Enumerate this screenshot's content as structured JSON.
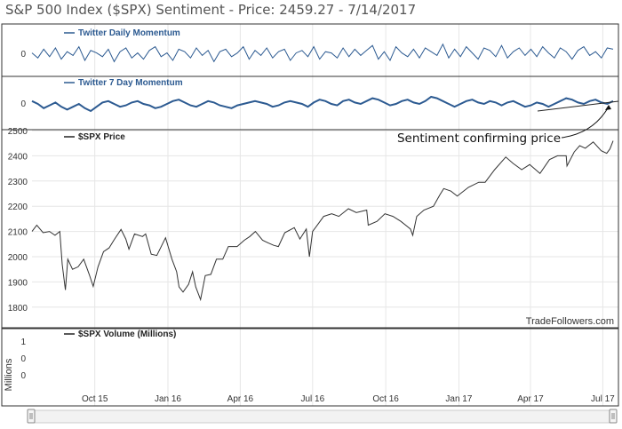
{
  "title": "S&P 500 Index ($SPX) Sentiment - Price: 2459.27 - 7/14/2017",
  "watermark": "TradeFollowers.com",
  "annotation": "Sentiment confirming price",
  "colors": {
    "momentum": "#2c5a91",
    "price": "#333333",
    "grid": "#e6e6e6",
    "panel_border": "#333333",
    "legend_blue": "#2c5a91",
    "legend_dark": "#222222"
  },
  "chart_data": [
    {
      "panel": "twitter-daily-momentum",
      "type": "line",
      "legend": "Twitter Daily Momentum",
      "ytick_labels": [
        "0"
      ],
      "x_start": "2015-07-14",
      "x_end": "2017-07-14",
      "series": [
        {
          "name": "Twitter Daily Momentum",
          "values": [
            0.1,
            -0.3,
            0.4,
            -0.2,
            0.5,
            -0.4,
            0.2,
            -0.1,
            0.6,
            -0.5,
            0.3,
            0.1,
            -0.2,
            0.4,
            -0.6,
            0.2,
            0.5,
            -0.3,
            0.1,
            -0.4,
            0.3,
            0.6,
            -0.2,
            0.1,
            -0.5,
            0.4,
            0.2,
            -0.3,
            0.5,
            -0.1,
            0.3,
            -0.6,
            0.2,
            0.4,
            -0.2,
            0.1,
            0.6,
            -0.4,
            0.3,
            -0.1,
            0.5,
            -0.3,
            0.2,
            0.4,
            -0.5,
            0.1,
            0.3,
            -0.2,
            0.6,
            -0.4,
            0.2,
            0.1,
            -0.3,
            0.5,
            -0.2,
            0.4,
            -0.1,
            0.3,
            0.7,
            -0.4,
            0.2,
            -0.5,
            0.6,
            0.1,
            -0.2,
            0.4,
            -0.3,
            0.5,
            0.2,
            -0.1,
            0.8,
            -0.3,
            0.4,
            -0.2,
            0.6,
            0.1,
            -0.4,
            0.5,
            0.3,
            -0.2,
            0.7,
            -0.3,
            0.2,
            0.5,
            -0.1,
            0.4,
            -0.2,
            0.6,
            0.1,
            -0.3,
            0.5,
            0.2,
            -0.4,
            0.3,
            0.6,
            -0.1,
            0.2,
            -0.3,
            0.5,
            0.4
          ]
        }
      ]
    },
    {
      "panel": "twitter-7-day-momentum",
      "type": "line",
      "legend": "Twitter 7 Day Momentum",
      "ytick_labels": [
        "0"
      ],
      "x_start": "2015-07-14",
      "x_end": "2017-07-14",
      "series": [
        {
          "name": "Twitter 7 Day Momentum",
          "values": [
            0.2,
            0.0,
            -0.3,
            -0.1,
            0.1,
            -0.2,
            -0.4,
            -0.2,
            0.0,
            -0.3,
            -0.5,
            -0.2,
            0.1,
            0.2,
            0.0,
            -0.2,
            -0.1,
            0.1,
            0.2,
            0.0,
            -0.1,
            -0.3,
            -0.2,
            0.0,
            0.2,
            0.3,
            0.1,
            -0.1,
            -0.2,
            0.0,
            0.2,
            0.1,
            -0.1,
            -0.2,
            -0.3,
            -0.1,
            0.0,
            0.1,
            0.2,
            0.1,
            0.0,
            -0.2,
            -0.1,
            0.1,
            0.2,
            0.1,
            0.0,
            -0.2,
            0.1,
            0.3,
            0.2,
            0.0,
            -0.1,
            0.2,
            0.3,
            0.1,
            0.0,
            0.2,
            0.4,
            0.3,
            0.1,
            -0.1,
            0.0,
            0.2,
            0.3,
            0.1,
            0.0,
            0.2,
            0.5,
            0.4,
            0.2,
            0.0,
            -0.2,
            0.0,
            0.2,
            0.3,
            0.1,
            0.0,
            0.2,
            0.1,
            -0.1,
            0.1,
            0.2,
            0.0,
            -0.2,
            -0.1,
            0.1,
            0.0,
            -0.2,
            0.0,
            0.2,
            0.4,
            0.3,
            0.1,
            0.0,
            0.2,
            0.3,
            0.1,
            0.0,
            0.2
          ]
        }
      ]
    },
    {
      "panel": "spx-price",
      "type": "line",
      "legend": "$SPX Price",
      "ylim": [
        1750,
        2500
      ],
      "yticks": [
        1800,
        1900,
        2000,
        2100,
        2200,
        2300,
        2400,
        2500
      ],
      "x_start": "2015-07-14",
      "x_end": "2017-07-14",
      "xticks": [
        {
          "label": "Oct 15",
          "date": "2015-10-01"
        },
        {
          "label": "Jan 16",
          "date": "2016-01-01"
        },
        {
          "label": "Apr 16",
          "date": "2016-04-01"
        },
        {
          "label": "Jul 16",
          "date": "2016-07-01"
        },
        {
          "label": "Oct 16",
          "date": "2016-10-01"
        },
        {
          "label": "Jan 17",
          "date": "2017-01-01"
        },
        {
          "label": "Apr 17",
          "date": "2017-04-01"
        },
        {
          "label": "Jul 17",
          "date": "2017-07-01"
        }
      ],
      "series": [
        {
          "name": "$SPX Price",
          "points": [
            [
              "2015-07-14",
              2100
            ],
            [
              "2015-07-20",
              2125
            ],
            [
              "2015-07-28",
              2095
            ],
            [
              "2015-08-05",
              2100
            ],
            [
              "2015-08-12",
              2085
            ],
            [
              "2015-08-18",
              2100
            ],
            [
              "2015-08-21",
              1970
            ],
            [
              "2015-08-25",
              1868
            ],
            [
              "2015-08-28",
              1990
            ],
            [
              "2015-09-03",
              1950
            ],
            [
              "2015-09-10",
              1960
            ],
            [
              "2015-09-17",
              1990
            ],
            [
              "2015-09-24",
              1930
            ],
            [
              "2015-09-29",
              1882
            ],
            [
              "2015-10-05",
              1960
            ],
            [
              "2015-10-12",
              2020
            ],
            [
              "2015-10-19",
              2035
            ],
            [
              "2015-10-26",
              2070
            ],
            [
              "2015-11-03",
              2108
            ],
            [
              "2015-11-09",
              2070
            ],
            [
              "2015-11-13",
              2030
            ],
            [
              "2015-11-20",
              2090
            ],
            [
              "2015-11-30",
              2080
            ],
            [
              "2015-12-04",
              2090
            ],
            [
              "2015-12-11",
              2010
            ],
            [
              "2015-12-18",
              2005
            ],
            [
              "2015-12-29",
              2075
            ],
            [
              "2016-01-06",
              1990
            ],
            [
              "2016-01-12",
              1940
            ],
            [
              "2016-01-15",
              1880
            ],
            [
              "2016-01-20",
              1860
            ],
            [
              "2016-01-27",
              1890
            ],
            [
              "2016-02-01",
              1940
            ],
            [
              "2016-02-05",
              1880
            ],
            [
              "2016-02-11",
              1830
            ],
            [
              "2016-02-17",
              1925
            ],
            [
              "2016-02-24",
              1930
            ],
            [
              "2016-03-02",
              1990
            ],
            [
              "2016-03-10",
              1990
            ],
            [
              "2016-03-17",
              2040
            ],
            [
              "2016-03-28",
              2040
            ],
            [
              "2016-04-06",
              2065
            ],
            [
              "2016-04-13",
              2080
            ],
            [
              "2016-04-20",
              2100
            ],
            [
              "2016-04-29",
              2065
            ],
            [
              "2016-05-06",
              2055
            ],
            [
              "2016-05-13",
              2045
            ],
            [
              "2016-05-19",
              2040
            ],
            [
              "2016-05-27",
              2095
            ],
            [
              "2016-06-08",
              2115
            ],
            [
              "2016-06-15",
              2070
            ],
            [
              "2016-06-23",
              2110
            ],
            [
              "2016-06-27",
              2000
            ],
            [
              "2016-07-01",
              2100
            ],
            [
              "2016-07-08",
              2130
            ],
            [
              "2016-07-15",
              2160
            ],
            [
              "2016-07-25",
              2170
            ],
            [
              "2016-08-03",
              2160
            ],
            [
              "2016-08-15",
              2190
            ],
            [
              "2016-08-25",
              2175
            ],
            [
              "2016-09-07",
              2185
            ],
            [
              "2016-09-09",
              2125
            ],
            [
              "2016-09-20",
              2140
            ],
            [
              "2016-09-30",
              2170
            ],
            [
              "2016-10-10",
              2160
            ],
            [
              "2016-10-20",
              2140
            ],
            [
              "2016-11-01",
              2110
            ],
            [
              "2016-11-04",
              2085
            ],
            [
              "2016-11-09",
              2160
            ],
            [
              "2016-11-18",
              2185
            ],
            [
              "2016-11-30",
              2200
            ],
            [
              "2016-12-08",
              2245
            ],
            [
              "2016-12-13",
              2270
            ],
            [
              "2016-12-22",
              2260
            ],
            [
              "2016-12-30",
              2240
            ],
            [
              "2017-01-13",
              2275
            ],
            [
              "2017-01-26",
              2295
            ],
            [
              "2017-02-03",
              2295
            ],
            [
              "2017-02-15",
              2345
            ],
            [
              "2017-03-01",
              2395
            ],
            [
              "2017-03-10",
              2370
            ],
            [
              "2017-03-21",
              2345
            ],
            [
              "2017-03-31",
              2365
            ],
            [
              "2017-04-13",
              2330
            ],
            [
              "2017-04-25",
              2385
            ],
            [
              "2017-05-05",
              2400
            ],
            [
              "2017-05-16",
              2400
            ],
            [
              "2017-05-17",
              2360
            ],
            [
              "2017-05-26",
              2415
            ],
            [
              "2017-06-02",
              2440
            ],
            [
              "2017-06-09",
              2430
            ],
            [
              "2017-06-19",
              2455
            ],
            [
              "2017-06-29",
              2420
            ],
            [
              "2017-07-06",
              2410
            ],
            [
              "2017-07-10",
              2427
            ],
            [
              "2017-07-14",
              2459
            ]
          ]
        }
      ]
    },
    {
      "panel": "spx-volume",
      "type": "line",
      "legend": "$SPX Volume (Millions)",
      "ylabel": "Millions",
      "yticks": [
        0,
        0.5,
        1
      ],
      "ytick_labels": [
        "0",
        "0",
        "1"
      ],
      "series": []
    }
  ]
}
